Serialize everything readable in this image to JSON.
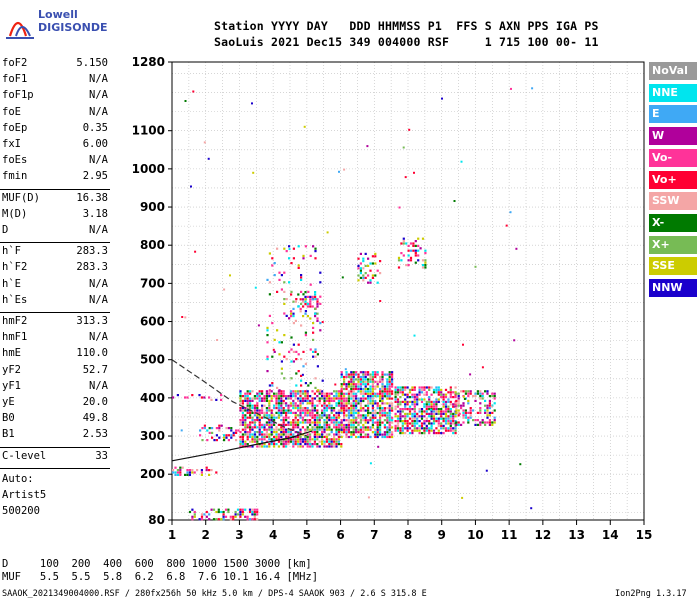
{
  "logo": {
    "line1": "Lowell",
    "line2": "DIGISONDE"
  },
  "header": {
    "line1": "Station YYYY DAY   DDD HHMMSS P1  FFS S AXN PPS IGA PS",
    "line2": "SaoLuis 2021 Dec15 349 004000 RSF     1 715 100 00- 11"
  },
  "params": {
    "group1": [
      {
        "k": "foF2",
        "v": "5.150"
      },
      {
        "k": "foF1",
        "v": "N/A"
      },
      {
        "k": "foF1p",
        "v": "N/A"
      },
      {
        "k": "foE",
        "v": "N/A"
      },
      {
        "k": "foEp",
        "v": "0.35"
      },
      {
        "k": "fxI",
        "v": "6.00"
      },
      {
        "k": "foEs",
        "v": "N/A"
      },
      {
        "k": "fmin",
        "v": "2.95"
      }
    ],
    "group2": [
      {
        "k": "MUF(D)",
        "v": "16.38"
      },
      {
        "k": "M(D)",
        "v": "3.18"
      },
      {
        "k": "D",
        "v": "N/A"
      }
    ],
    "group3": [
      {
        "k": "h`F",
        "v": "283.3"
      },
      {
        "k": "h`F2",
        "v": "283.3"
      },
      {
        "k": "h`E",
        "v": "N/A"
      },
      {
        "k": "h`Es",
        "v": "N/A"
      }
    ],
    "group4": [
      {
        "k": "hmF2",
        "v": "313.3"
      },
      {
        "k": "hmF1",
        "v": "N/A"
      },
      {
        "k": "hmE",
        "v": "110.0"
      },
      {
        "k": "yF2",
        "v": "52.7"
      },
      {
        "k": "yF1",
        "v": "N/A"
      },
      {
        "k": "yE",
        "v": "20.0"
      },
      {
        "k": "B0",
        "v": "49.8"
      },
      {
        "k": "B1",
        "v": "2.53"
      }
    ],
    "group5": [
      {
        "k": "C-level",
        "v": "33"
      }
    ],
    "auto": [
      "Auto:",
      "Artist5",
      "500200"
    ]
  },
  "legend": [
    {
      "label": "NoVal",
      "color": "#9a9a9a"
    },
    {
      "label": "NNE",
      "color": "#00e5ee"
    },
    {
      "label": "E",
      "color": "#3fa9f5"
    },
    {
      "label": "W",
      "color": "#b0009b"
    },
    {
      "label": "Vo-",
      "color": "#ff3399"
    },
    {
      "label": "Vo+",
      "color": "#ff0033"
    },
    {
      "label": "SSW",
      "color": "#f4a6a6"
    },
    {
      "label": "X-",
      "color": "#007a00"
    },
    {
      "label": "X+",
      "color": "#77bb55"
    },
    {
      "label": "SSE",
      "color": "#cccc00"
    },
    {
      "label": "NNW",
      "color": "#1a00cc"
    }
  ],
  "footer": {
    "d_row": "D     100  200  400  600  800 1000 1500 3000 [km]",
    "muf_row": "MUF   5.5  5.5  5.8  6.2  6.8  7.6 10.1 16.4 [MHz]",
    "file_line": "SAAOK_2021349004000.RSF / 280fx256h 50 kHz 5.0 km / DPS-4 SAAOK 903 / 2.6 S 315.8 E",
    "version": "Ion2Png 1.3.17"
  },
  "chart_data": {
    "type": "scatter",
    "title": "",
    "xlabel": "",
    "ylabel": "",
    "xlim": [
      1,
      15
    ],
    "ylim": [
      80,
      1280
    ],
    "xticks": [
      "1",
      "2",
      "3",
      "4",
      "5",
      "6",
      "7",
      "8",
      "9",
      "10",
      "11",
      "12",
      "13",
      "14",
      "15"
    ],
    "yticks": [
      "80",
      "200",
      "300",
      "400",
      "500",
      "600",
      "700",
      "800",
      "900",
      "1000",
      "1100",
      "1280"
    ],
    "ytick_values": [
      80,
      200,
      300,
      400,
      500,
      600,
      700,
      800,
      900,
      1000,
      1100,
      1280
    ],
    "grid": true,
    "series_trace_points": [
      {
        "x": 1.0,
        "y": 500
      },
      {
        "x": 2.0,
        "y": 440
      },
      {
        "x": 2.8,
        "y": 390
      },
      {
        "x": 3.5,
        "y": 360
      },
      {
        "x": 4.3,
        "y": 325
      },
      {
        "x": 5.0,
        "y": 300
      }
    ],
    "series_profile_points": [
      {
        "x": 1.0,
        "y": 235
      },
      {
        "x": 2.5,
        "y": 260
      },
      {
        "x": 3.5,
        "y": 278
      },
      {
        "x": 4.5,
        "y": 295
      },
      {
        "x": 5.15,
        "y": 313
      }
    ],
    "echo_clusters": [
      {
        "x0": 3.0,
        "x1": 6.0,
        "y0": 270,
        "y1": 420,
        "density": 0.75
      },
      {
        "x0": 6.0,
        "x1": 7.5,
        "y0": 300,
        "y1": 470,
        "density": 0.8
      },
      {
        "x0": 7.6,
        "x1": 9.4,
        "y0": 310,
        "y1": 430,
        "density": 0.7
      },
      {
        "x0": 9.4,
        "x1": 10.6,
        "y0": 330,
        "y1": 420,
        "density": 0.45
      },
      {
        "x0": 3.8,
        "x1": 5.5,
        "y0": 420,
        "y1": 800,
        "density": 0.08
      },
      {
        "x0": 4.5,
        "x1": 5.3,
        "y0": 600,
        "y1": 680,
        "density": 0.3
      },
      {
        "x0": 6.5,
        "x1": 7.2,
        "y0": 700,
        "y1": 780,
        "density": 0.25
      },
      {
        "x0": 7.7,
        "x1": 8.5,
        "y0": 740,
        "y1": 820,
        "density": 0.3
      },
      {
        "x0": 1.5,
        "x1": 3.5,
        "y0": 80,
        "y1": 110,
        "density": 0.45
      },
      {
        "x0": 1.0,
        "x1": 2.3,
        "y0": 200,
        "y1": 220,
        "density": 0.35
      },
      {
        "x0": 1.8,
        "x1": 3.0,
        "y0": 290,
        "y1": 330,
        "density": 0.3
      },
      {
        "x0": 1.0,
        "x1": 2.5,
        "y0": 395,
        "y1": 410,
        "density": 0.25
      }
    ]
  }
}
